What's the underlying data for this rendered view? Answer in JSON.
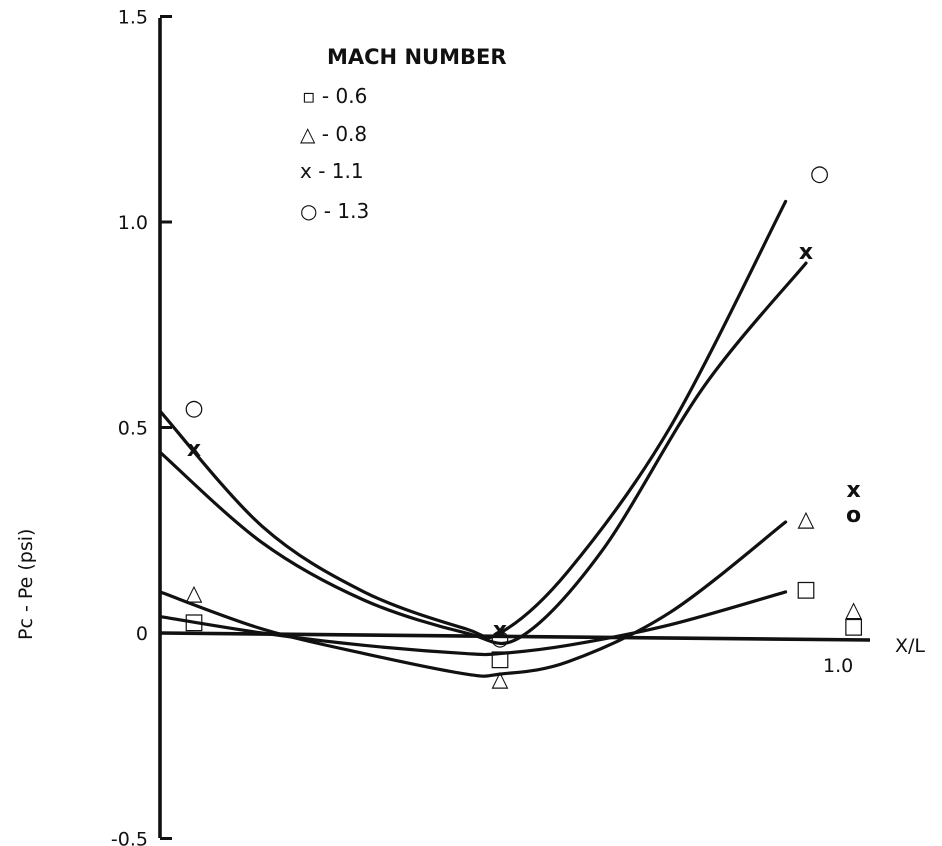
{
  "chart_data": {
    "type": "line",
    "title": "",
    "xlabel": "X/L",
    "ylabel": "Pc - Pe (psi)",
    "xlim": [
      0,
      1.0
    ],
    "ylim": [
      -0.5,
      1.5
    ],
    "yticks": [
      -0.5,
      0,
      0.5,
      1.0,
      1.5
    ],
    "ytick_labels": [
      "-0.5",
      "0",
      "0.5",
      "1.0",
      "1.5"
    ],
    "xtick_labels": [
      "1.0"
    ],
    "legend_title": "MACH NUMBER",
    "legend_position": "top-left",
    "series": [
      {
        "name": "0.6",
        "symbol": "□",
        "legend_label": "▫ - 0.6",
        "x": [
          0.05,
          0.5,
          0.95
        ],
        "y": [
          0.03,
          -0.06,
          0.11
        ],
        "curve": [
          [
            0.0,
            0.04
          ],
          [
            0.15,
            0.0
          ],
          [
            0.3,
            -0.03
          ],
          [
            0.45,
            -0.05
          ],
          [
            0.5,
            -0.05
          ],
          [
            0.6,
            -0.03
          ],
          [
            0.75,
            0.02
          ],
          [
            0.92,
            0.1
          ]
        ]
      },
      {
        "name": "0.8",
        "symbol": "△",
        "legend_label": "△ - 0.8",
        "x": [
          0.05,
          0.5,
          0.95
        ],
        "y": [
          0.1,
          -0.11,
          0.28
        ],
        "curve": [
          [
            0.0,
            0.1
          ],
          [
            0.15,
            0.01
          ],
          [
            0.3,
            -0.05
          ],
          [
            0.45,
            -0.1
          ],
          [
            0.5,
            -0.1
          ],
          [
            0.6,
            -0.07
          ],
          [
            0.75,
            0.05
          ],
          [
            0.92,
            0.27
          ]
        ]
      },
      {
        "name": "1.1",
        "symbol": "x",
        "legend_label": "x - 1.1",
        "x": [
          0.05,
          0.5,
          0.95
        ],
        "y": [
          0.45,
          0.01,
          0.93
        ],
        "curve": [
          [
            0.0,
            0.44
          ],
          [
            0.15,
            0.22
          ],
          [
            0.3,
            0.08
          ],
          [
            0.45,
            0.0
          ],
          [
            0.53,
            -0.01
          ],
          [
            0.65,
            0.2
          ],
          [
            0.8,
            0.6
          ],
          [
            0.95,
            0.9
          ]
        ]
      },
      {
        "name": "1.3",
        "symbol": "○",
        "legend_label": "○ - 1.3",
        "x": [
          0.05,
          0.5,
          0.97
        ],
        "y": [
          0.55,
          -0.01,
          1.12
        ],
        "curve": [
          [
            0.0,
            0.54
          ],
          [
            0.15,
            0.26
          ],
          [
            0.3,
            0.1
          ],
          [
            0.45,
            0.01
          ],
          [
            0.5,
            0.0
          ],
          [
            0.6,
            0.15
          ],
          [
            0.75,
            0.5
          ],
          [
            0.92,
            1.05
          ]
        ]
      }
    ],
    "off_curve_points": [
      {
        "symbol": "x",
        "x": 1.02,
        "y": 0.35
      },
      {
        "symbol": "o",
        "x": 1.02,
        "y": 0.29
      },
      {
        "symbol": "△",
        "x": 1.02,
        "y": 0.06
      },
      {
        "symbol": "□",
        "x": 1.02,
        "y": 0.02
      }
    ]
  }
}
